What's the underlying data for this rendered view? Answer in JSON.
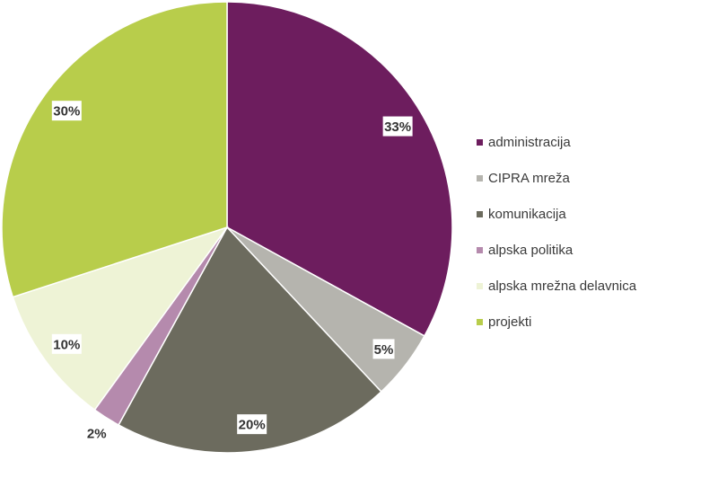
{
  "chart_data": {
    "type": "pie",
    "title": "",
    "start": "top",
    "direction": "clockwise",
    "legend_position": "right",
    "slices": [
      {
        "label": "administracija",
        "value": 33,
        "display": "33%",
        "color": "#6d1d5e",
        "label_boxed": true
      },
      {
        "label": "CIPRA mreža",
        "value": 5,
        "display": "5%",
        "color": "#b5b4ae",
        "label_boxed": true
      },
      {
        "label": "komunikacija",
        "value": 20,
        "display": "20%",
        "color": "#6c6b5e",
        "label_boxed": true
      },
      {
        "label": "alpska politika",
        "value": 2,
        "display": "2%",
        "color": "#b58aad",
        "label_boxed": false
      },
      {
        "label": "alpska mrežna delavnica",
        "value": 10,
        "display": "10%",
        "color": "#eef3d6",
        "label_boxed": true
      },
      {
        "label": "projekti",
        "value": 30,
        "display": "30%",
        "color": "#b8cd4b",
        "label_boxed": true
      }
    ]
  }
}
